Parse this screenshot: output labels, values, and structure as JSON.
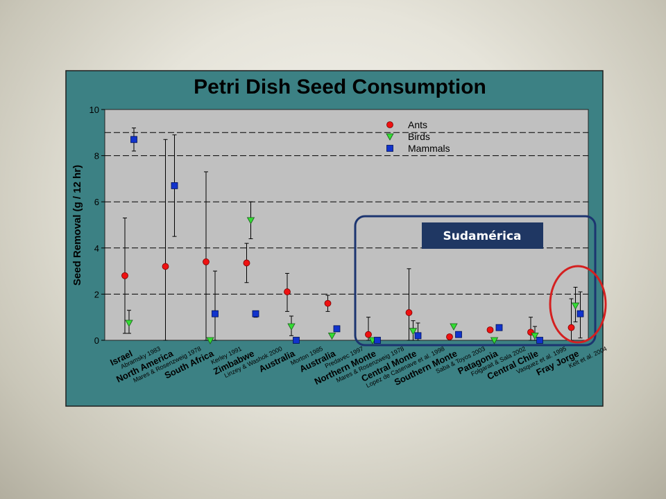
{
  "colors": {
    "frame_bg": "#3c8184",
    "plot_bg": "#c0c0c0",
    "ants": "#ee1111",
    "birds": "#33dd33",
    "mammals": "#1133cc",
    "highlight_blue": "#1c3570",
    "highlight_red": "#d42020",
    "badge_bg": "#1f3763"
  },
  "icons": {
    "ants": "red-circle",
    "birds": "green-down-triangle",
    "mammals": "blue-square"
  },
  "badge_label": "Sudamérica",
  "chart_data": {
    "type": "scatter",
    "title": "Petri Dish Seed Consumption",
    "ylabel": "Seed Removal (g / 12 hr)",
    "xlabel": "",
    "ylim": [
      0,
      10
    ],
    "yticks": [
      0,
      2,
      4,
      6,
      8,
      10
    ],
    "grid": "horizontal dashed at 2, 4, 6, 8, 9",
    "legend_position": "top-right",
    "categories": [
      {
        "region": "Israel",
        "citation": "Abramsky 1983"
      },
      {
        "region": "North America",
        "citation": "Mares & Rosenzweig 1978"
      },
      {
        "region": "South Africa",
        "citation": "Kerley 1991"
      },
      {
        "region": "Zimbabwe",
        "citation": "Linzey & Washok 2000"
      },
      {
        "region": "Australia",
        "citation": "Morton 1985"
      },
      {
        "region": "Australia",
        "citation": "Predavec 1997"
      },
      {
        "region": "Northern Monte",
        "citation": "Mares & Rosenzweig 1978"
      },
      {
        "region": "Central Monte",
        "citation": "Lopez de Casenave et al. 1998"
      },
      {
        "region": "Southern Monte",
        "citation": "Saba & Toyos 2003"
      },
      {
        "region": "Patagonia",
        "citation": "Folgarait & Sala 2002"
      },
      {
        "region": "Central Chile",
        "citation": "Vasquez et al. 1995"
      },
      {
        "region": "Fray Jorge",
        "citation": "Kelt et al. 2004"
      }
    ],
    "series": [
      {
        "name": "Ants",
        "marker": "circle",
        "values": [
          2.8,
          3.2,
          3.4,
          3.35,
          2.1,
          1.6,
          0.25,
          1.2,
          0.15,
          0.45,
          0.35,
          0.55
        ],
        "err_low": [
          0.3,
          0.0,
          0.0,
          2.5,
          1.25,
          1.25,
          0.0,
          0.0,
          null,
          null,
          0.0,
          0.0
        ],
        "err_high": [
          5.3,
          8.7,
          7.3,
          4.2,
          2.9,
          1.95,
          1.0,
          3.1,
          null,
          null,
          1.0,
          1.8
        ]
      },
      {
        "name": "Birds",
        "marker": "triangle",
        "values": [
          0.75,
          null,
          0.0,
          5.2,
          0.6,
          0.2,
          0.0,
          0.4,
          0.6,
          0.0,
          0.2,
          1.5
        ],
        "err_low": [
          0.3,
          null,
          null,
          4.4,
          0.2,
          null,
          null,
          0.0,
          null,
          null,
          0.0,
          0.8
        ],
        "err_high": [
          1.3,
          null,
          null,
          6.0,
          1.05,
          null,
          null,
          0.85,
          null,
          null,
          0.6,
          2.3
        ]
      },
      {
        "name": "Mammals",
        "marker": "square",
        "values": [
          8.7,
          6.7,
          1.15,
          1.15,
          0.0,
          0.5,
          0.0,
          0.2,
          0.25,
          0.55,
          0.0,
          1.15
        ],
        "err_low": [
          8.2,
          4.5,
          0.0,
          1.0,
          null,
          null,
          null,
          0.0,
          null,
          null,
          null,
          0.1
        ],
        "err_high": [
          9.2,
          8.9,
          3.0,
          1.25,
          null,
          null,
          null,
          0.75,
          null,
          null,
          null,
          2.1
        ]
      }
    ]
  }
}
